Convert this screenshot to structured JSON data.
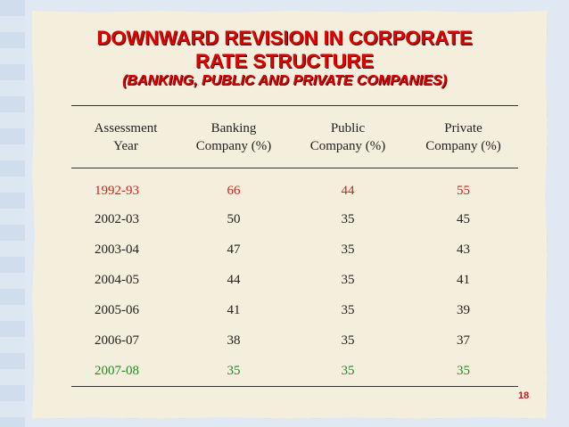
{
  "title": {
    "line1": "DOWNWARD REVISION IN CORPORATE",
    "line2": "RATE STRUCTURE",
    "line3": "(BANKING, PUBLIC AND PRIVATE COMPANIES)"
  },
  "table": {
    "headers": [
      [
        "Assessment",
        "Year"
      ],
      [
        "Banking",
        "Company (%)"
      ],
      [
        "Public",
        "Company (%)"
      ],
      [
        "Private",
        "Company (%)"
      ]
    ],
    "rows": [
      [
        "1992-93",
        "66",
        "44",
        "55"
      ],
      [
        "2002-03",
        "50",
        "35",
        "45"
      ],
      [
        "2003-04",
        "47",
        "35",
        "43"
      ],
      [
        "2004-05",
        "44",
        "35",
        "41"
      ],
      [
        "2005-06",
        "41",
        "35",
        "39"
      ],
      [
        "2006-07",
        "38",
        "35",
        "37"
      ],
      [
        "2007-08",
        "35",
        "35",
        "35"
      ]
    ]
  },
  "colors": {
    "title": "#e00000",
    "highlight_first": "#cc2222",
    "highlight_last": "#1f8a1f"
  },
  "page_number": "18"
}
